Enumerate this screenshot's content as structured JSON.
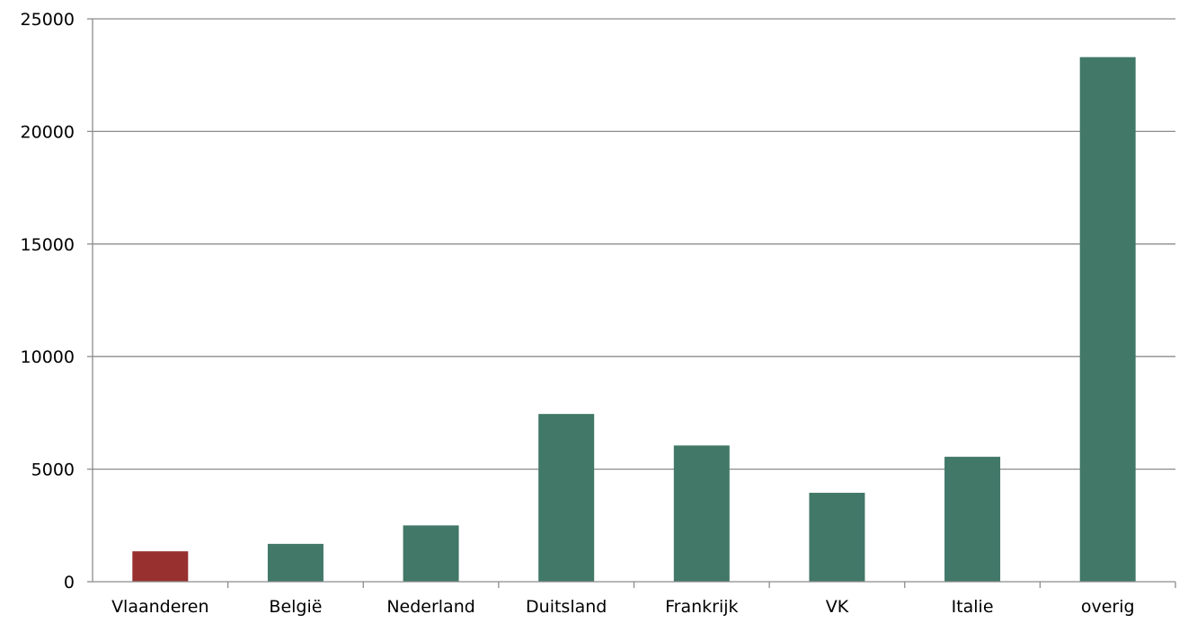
{
  "chart_data": {
    "type": "bar",
    "title": "",
    "xlabel": "",
    "ylabel": "",
    "categories": [
      "Vlaanderen",
      "België",
      "Nederland",
      "Duitsland",
      "Frankrijk",
      "VK",
      "Italie",
      "overig"
    ],
    "values": [
      1350,
      1680,
      2500,
      7450,
      6050,
      3950,
      5550,
      23300
    ],
    "bar_colors": [
      "#983030",
      "#417868",
      "#417868",
      "#417868",
      "#417868",
      "#417868",
      "#417868",
      "#417868"
    ],
    "ylim": [
      0,
      25000
    ],
    "yticks": [
      "0",
      "5000",
      "10000",
      "15000",
      "20000",
      "25000"
    ],
    "ytick_values": [
      0,
      5000,
      10000,
      15000,
      20000,
      25000
    ],
    "grid": true,
    "legend": "none"
  }
}
